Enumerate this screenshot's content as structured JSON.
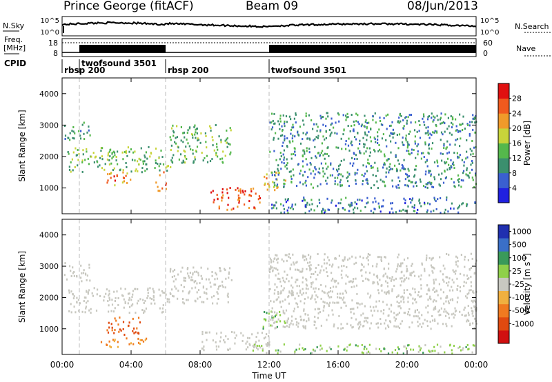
{
  "header": {
    "station": "Prince George (fitACF)",
    "beam": "Beam 09",
    "date": "08/Jun/2013"
  },
  "strip_labels": {
    "nsky": "N.Sky",
    "nsearch": "N.Search",
    "freq": "Freq.",
    "mhz": "[MHz]",
    "nave": "Nave",
    "cpid": "CPID"
  },
  "noise_ticks_left": [
    "10^5",
    "10^0"
  ],
  "noise_ticks_right": [
    "10^5",
    "10^0"
  ],
  "freq_ticks_left": [
    "18",
    "8"
  ],
  "freq_ticks_right": [
    "60",
    "0"
  ],
  "cpid_segments": [
    {
      "name": "rbsp 200",
      "start_hour": 0
    },
    {
      "name": "twofsound 3501",
      "start_hour": 1
    },
    {
      "name": "rbsp 200",
      "start_hour": 6
    },
    {
      "name": "twofsound 3501",
      "start_hour": 12
    }
  ],
  "x_axis": {
    "label": "Time UT",
    "ticks": [
      "00:00",
      "04:00",
      "08:00",
      "12:00",
      "16:00",
      "20:00",
      "00:00"
    ]
  },
  "y_axis": {
    "label": "Slant Range [km]",
    "ticks": [
      "1000",
      "2000",
      "3000",
      "4000"
    ]
  },
  "colorbar_power": {
    "label": "Power [dB]",
    "ticks": [
      "4",
      "8",
      "12",
      "16",
      "20",
      "24",
      "28"
    ],
    "colors": [
      "#2020e0",
      "#3a5fd0",
      "#3b8f6e",
      "#55b84c",
      "#c8d43a",
      "#f09a2a",
      "#f05a1e",
      "#e01010"
    ]
  },
  "colorbar_velocity": {
    "label_main": "Velocity ",
    "label_unit": "[m s",
    "label_sup": "-1",
    "label_close": "]",
    "ticks": [
      "1000",
      "500",
      "100",
      "25",
      "-25",
      "-100",
      "-500",
      "-1000"
    ],
    "colors": [
      "#2030b0",
      "#3a6fc8",
      "#3a9a5a",
      "#8fd04a",
      "#c8c8c0",
      "#f0b040",
      "#f07a20",
      "#e04a10",
      "#d01010"
    ]
  },
  "chart_data": [
    {
      "type": "heatmap",
      "title": "Power",
      "xlabel": "Time UT",
      "ylabel": "Slant Range [km]",
      "xlim_hours": [
        0,
        24
      ],
      "ylim_km": [
        180,
        4500
      ],
      "zlabel": "Power [dB]",
      "zlim": [
        0,
        32
      ],
      "echo_regions": [
        {
          "t_start": 0.1,
          "t_end": 1.6,
          "r_low": 2500,
          "r_high": 3100,
          "db": 10
        },
        {
          "t_start": 0.3,
          "t_end": 6.3,
          "r_low": 1500,
          "r_high": 2300,
          "db": 14
        },
        {
          "t_start": 2.5,
          "t_end": 4.0,
          "r_low": 1000,
          "r_high": 1500,
          "db": 24
        },
        {
          "t_start": 5.4,
          "t_end": 6.0,
          "r_low": 900,
          "r_high": 1500,
          "db": 26
        },
        {
          "t_start": 6.2,
          "t_end": 9.8,
          "r_low": 1800,
          "r_high": 3000,
          "db": 14
        },
        {
          "t_start": 8.5,
          "t_end": 11.5,
          "r_low": 300,
          "r_high": 1000,
          "db": 26
        },
        {
          "t_start": 11.6,
          "t_end": 13.0,
          "r_low": 900,
          "r_high": 1500,
          "db": 20
        },
        {
          "t_start": 12.0,
          "t_end": 24.0,
          "r_low": 1000,
          "r_high": 3400,
          "db": 10
        },
        {
          "t_start": 12.0,
          "t_end": 24.0,
          "r_low": 200,
          "r_high": 700,
          "db": 8
        }
      ]
    },
    {
      "type": "heatmap",
      "title": "Velocity",
      "xlabel": "Time UT",
      "ylabel": "Slant Range [km]",
      "xlim_hours": [
        0,
        24
      ],
      "ylim_km": [
        180,
        4500
      ],
      "zlabel": "Velocity [m s-1]",
      "zlim": [
        -1000,
        1000
      ],
      "echo_regions": [
        {
          "t_start": 0.1,
          "t_end": 1.6,
          "r_low": 2500,
          "r_high": 3100,
          "ms": 0
        },
        {
          "t_start": 0.3,
          "t_end": 6.3,
          "r_low": 1500,
          "r_high": 2300,
          "ms": 0
        },
        {
          "t_start": 2.5,
          "t_end": 4.5,
          "r_low": 800,
          "r_high": 1400,
          "ms": -300
        },
        {
          "t_start": 2.2,
          "t_end": 5.0,
          "r_low": 400,
          "r_high": 700,
          "ms": -80
        },
        {
          "t_start": 6.2,
          "t_end": 9.8,
          "r_low": 1800,
          "r_high": 3000,
          "ms": 0
        },
        {
          "t_start": 8.0,
          "t_end": 12.0,
          "r_low": 300,
          "r_high": 900,
          "ms": 0
        },
        {
          "t_start": 11.6,
          "t_end": 13.0,
          "r_low": 1000,
          "r_high": 1600,
          "ms": 60
        },
        {
          "t_start": 12.0,
          "t_end": 24.0,
          "r_low": 1000,
          "r_high": 3400,
          "ms": 0
        },
        {
          "t_start": 11.0,
          "t_end": 24.0,
          "r_low": 200,
          "r_high": 500,
          "ms": 40
        }
      ]
    }
  ]
}
